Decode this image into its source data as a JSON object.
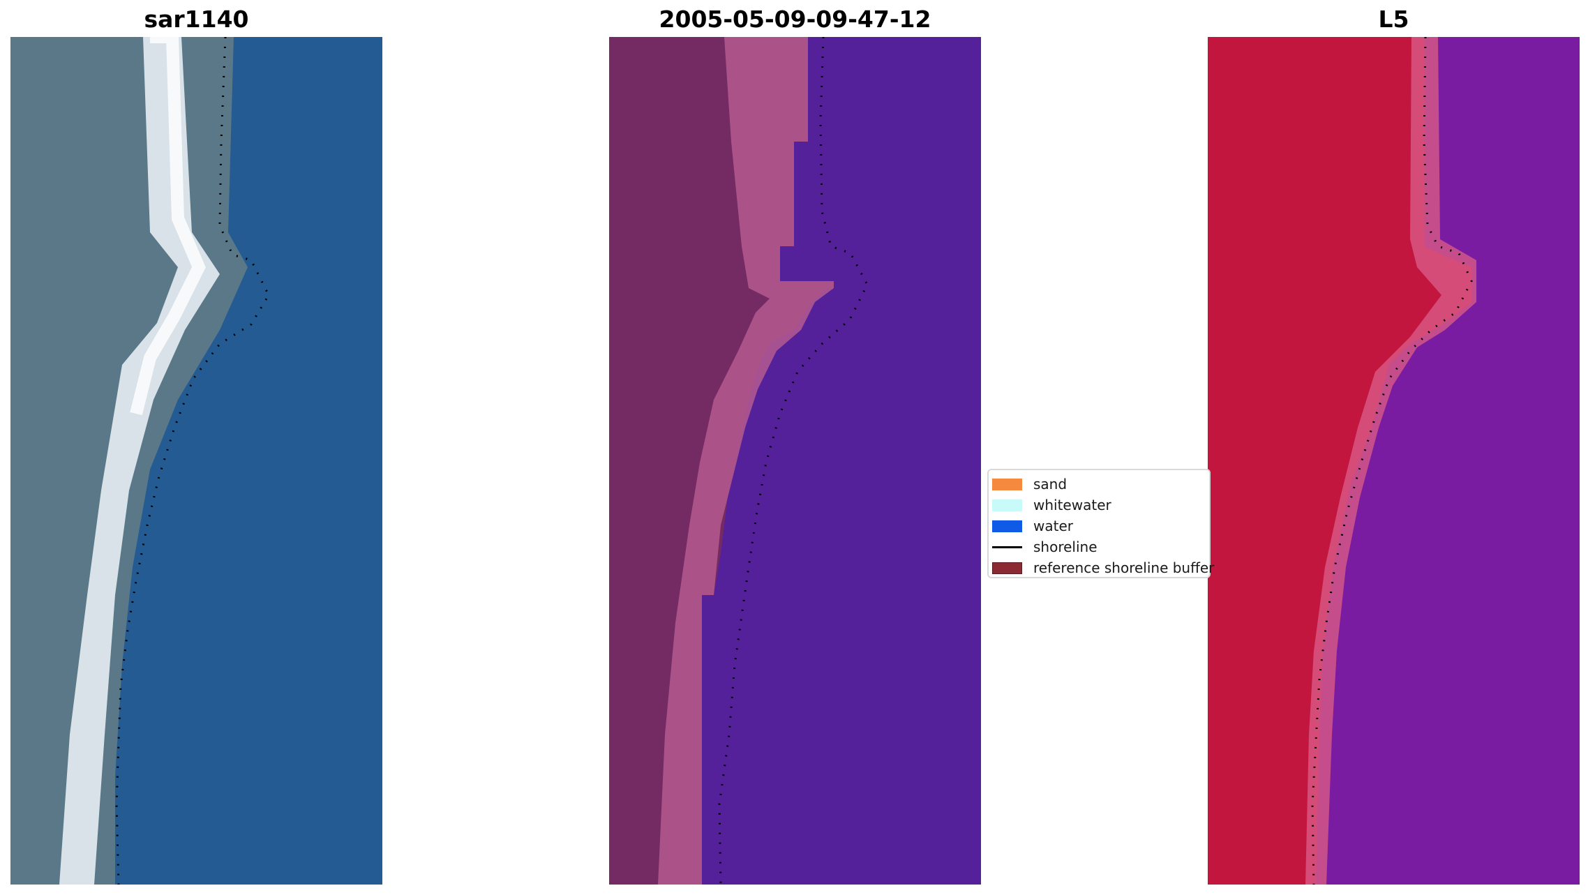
{
  "panels": [
    {
      "title": "sar1140"
    },
    {
      "title": "2005-05-09-09-47-12"
    },
    {
      "title": "L5"
    }
  ],
  "legend": {
    "items": [
      {
        "label": "sand",
        "color": "#f58a3f",
        "kind": "patch"
      },
      {
        "label": "whitewater",
        "color": "#c8fafa",
        "kind": "patch"
      },
      {
        "label": "water",
        "color": "#0f5ae6",
        "kind": "patch"
      },
      {
        "label": "shoreline",
        "color": "#000000",
        "kind": "line"
      },
      {
        "label": "reference shoreline buffer",
        "color": "#8b2a33",
        "kind": "patch"
      }
    ]
  },
  "colors": {
    "sar_land": "#4d7385",
    "sar_surf": "#eef4f8",
    "sar_water": "#235b92",
    "class_land": "#742a62",
    "class_buffer": "#b55a91",
    "class_water": "#54219a",
    "l5_land": "#c3163e",
    "l5_buffer": "#d85a86",
    "l5_water": "#7a1ca2"
  }
}
